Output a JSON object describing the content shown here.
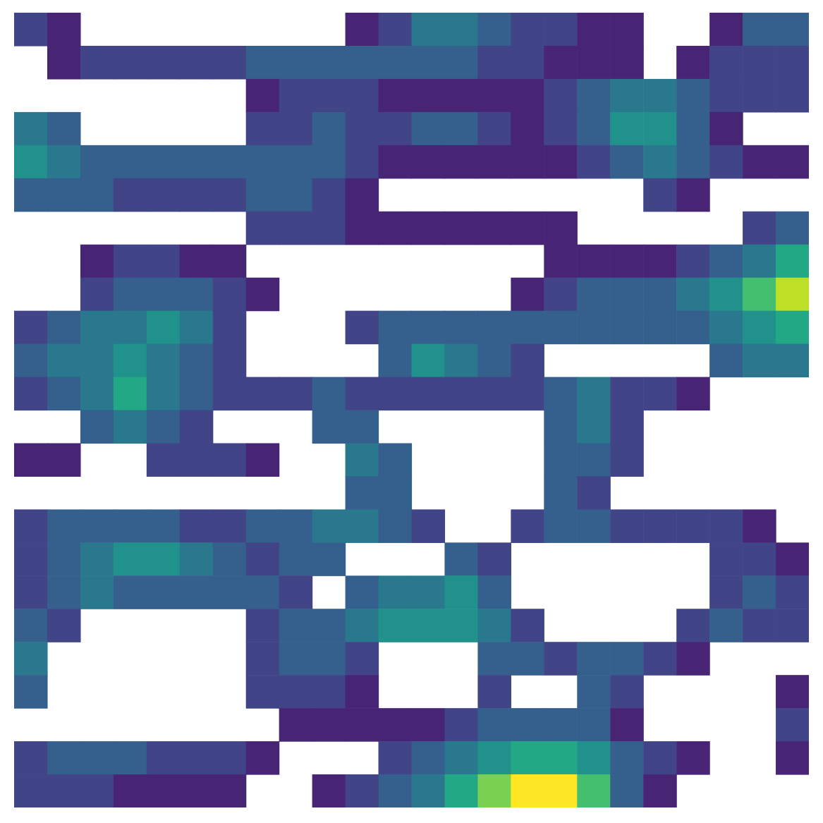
{
  "chart_data": {
    "type": "heatmap",
    "xlim": [
      0,
      24
    ],
    "ylim": [
      0,
      24
    ],
    "color_range": [
      0,
      10
    ],
    "tick_labels": false,
    "cells": [
      [
        2,
        1,
        null,
        null,
        null,
        null,
        null,
        null,
        null,
        null,
        1,
        2,
        4,
        4,
        3,
        2,
        2,
        1,
        1,
        null,
        null,
        1,
        3,
        3
      ],
      [
        null,
        1,
        2,
        2,
        2,
        2,
        2,
        3,
        3,
        3,
        3,
        3,
        3,
        3,
        2,
        2,
        1,
        1,
        1,
        null,
        1,
        2,
        2,
        2
      ],
      [
        null,
        null,
        null,
        null,
        null,
        null,
        null,
        1,
        2,
        2,
        2,
        1,
        1,
        1,
        1,
        1,
        2,
        3,
        4,
        4,
        3,
        2,
        2,
        2
      ],
      [
        4,
        3,
        null,
        null,
        null,
        null,
        null,
        2,
        2,
        3,
        2,
        2,
        3,
        3,
        2,
        1,
        2,
        3,
        5,
        5,
        3,
        1,
        null,
        null
      ],
      [
        5,
        4,
        3,
        3,
        3,
        3,
        3,
        3,
        3,
        3,
        2,
        1,
        1,
        1,
        1,
        1,
        1,
        2,
        3,
        4,
        3,
        2,
        1,
        1
      ],
      [
        3,
        3,
        3,
        2,
        2,
        2,
        2,
        3,
        3,
        2,
        1,
        null,
        null,
        null,
        null,
        null,
        null,
        null,
        null,
        2,
        1,
        null,
        null,
        null
      ],
      [
        null,
        null,
        null,
        null,
        null,
        null,
        null,
        2,
        2,
        2,
        1,
        1,
        1,
        1,
        1,
        1,
        1,
        null,
        null,
        null,
        null,
        null,
        2,
        3
      ],
      [
        null,
        null,
        1,
        2,
        2,
        1,
        1,
        null,
        null,
        null,
        null,
        null,
        null,
        null,
        null,
        null,
        1,
        1,
        1,
        1,
        2,
        3,
        4,
        6
      ],
      [
        null,
        null,
        2,
        3,
        3,
        3,
        2,
        1,
        null,
        null,
        null,
        null,
        null,
        null,
        null,
        1,
        2,
        3,
        3,
        3,
        4,
        5,
        7,
        9
      ],
      [
        2,
        3,
        4,
        4,
        5,
        4,
        2,
        null,
        null,
        null,
        2,
        3,
        3,
        3,
        3,
        3,
        3,
        3,
        3,
        3,
        3,
        4,
        5,
        6
      ],
      [
        3,
        4,
        4,
        5,
        4,
        3,
        2,
        null,
        null,
        null,
        null,
        3,
        5,
        4,
        3,
        2,
        null,
        null,
        null,
        null,
        null,
        3,
        4,
        4
      ],
      [
        2,
        3,
        4,
        6,
        4,
        3,
        2,
        2,
        2,
        3,
        2,
        2,
        2,
        2,
        2,
        2,
        3,
        4,
        2,
        2,
        1,
        null,
        null,
        null
      ],
      [
        null,
        null,
        3,
        4,
        3,
        2,
        null,
        null,
        null,
        3,
        3,
        null,
        null,
        null,
        null,
        null,
        3,
        4,
        2,
        null,
        null,
        null,
        null,
        null
      ],
      [
        1,
        1,
        null,
        null,
        2,
        2,
        2,
        1,
        null,
        null,
        4,
        3,
        null,
        null,
        null,
        null,
        3,
        3,
        2,
        null,
        null,
        null,
        null,
        null
      ],
      [
        null,
        null,
        null,
        null,
        null,
        null,
        null,
        null,
        null,
        null,
        3,
        3,
        null,
        null,
        null,
        null,
        3,
        2,
        null,
        null,
        null,
        null,
        null,
        null
      ],
      [
        2,
        3,
        3,
        3,
        3,
        2,
        2,
        3,
        3,
        4,
        4,
        3,
        2,
        null,
        null,
        2,
        3,
        3,
        2,
        2,
        2,
        2,
        1,
        null
      ],
      [
        2,
        3,
        4,
        5,
        5,
        4,
        3,
        2,
        3,
        3,
        null,
        null,
        null,
        3,
        2,
        null,
        null,
        null,
        null,
        null,
        null,
        2,
        2,
        1
      ],
      [
        2,
        3,
        4,
        3,
        3,
        3,
        3,
        3,
        2,
        null,
        3,
        4,
        4,
        5,
        3,
        null,
        null,
        null,
        null,
        null,
        null,
        2,
        3,
        2
      ],
      [
        3,
        2,
        null,
        null,
        null,
        null,
        null,
        2,
        3,
        3,
        4,
        5,
        5,
        5,
        4,
        2,
        null,
        null,
        null,
        null,
        2,
        3,
        2,
        2
      ],
      [
        4,
        null,
        null,
        null,
        null,
        null,
        null,
        2,
        3,
        3,
        2,
        null,
        null,
        null,
        3,
        3,
        2,
        3,
        3,
        2,
        1,
        null,
        null,
        null
      ],
      [
        3,
        null,
        null,
        null,
        null,
        null,
        null,
        2,
        2,
        2,
        1,
        null,
        null,
        null,
        2,
        null,
        null,
        3,
        2,
        null,
        null,
        null,
        null,
        1
      ],
      [
        null,
        null,
        null,
        null,
        null,
        null,
        null,
        null,
        1,
        1,
        1,
        1,
        1,
        2,
        3,
        3,
        3,
        3,
        1,
        null,
        null,
        null,
        null,
        2
      ],
      [
        2,
        3,
        3,
        3,
        2,
        2,
        2,
        1,
        null,
        null,
        null,
        2,
        3,
        4,
        5,
        6,
        6,
        5,
        3,
        2,
        1,
        null,
        null,
        1
      ],
      [
        2,
        2,
        2,
        1,
        1,
        1,
        1,
        null,
        null,
        1,
        2,
        3,
        4,
        6,
        8,
        10,
        10,
        7,
        3,
        1,
        null,
        null,
        null,
        null
      ]
    ]
  }
}
